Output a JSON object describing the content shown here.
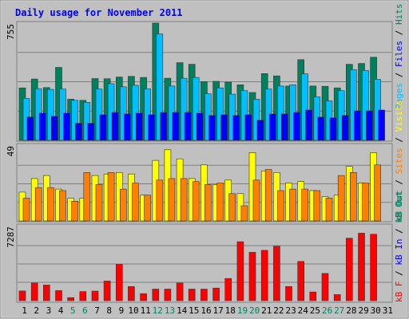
{
  "chart_data": {
    "type": "bar",
    "title": "Daily usage for November 2011",
    "days": [
      "1",
      "2",
      "3",
      "4",
      "5",
      "6",
      "7",
      "8",
      "9",
      "10",
      "11",
      "12",
      "13",
      "14",
      "15",
      "16",
      "17",
      "18",
      "19",
      "20",
      "21",
      "22",
      "23",
      "24",
      "25",
      "26",
      "27",
      "28",
      "29",
      "30",
      "31"
    ],
    "weekend_days": [
      "5",
      "6",
      "12",
      "13",
      "19",
      "20",
      "26",
      "27"
    ],
    "panels": [
      {
        "id": "hits",
        "ymax": 755,
        "ymax_label": "755",
        "ylabel": [
          "Pages",
          "Files",
          "Hits"
        ],
        "series": [
          {
            "name": "Hits",
            "color": "#00805c",
            "values": [
              338,
              395,
              340,
              470,
              265,
              258,
              398,
              397,
              408,
              412,
              405,
              755,
              400,
              500,
              490,
              378,
              380,
              375,
              358,
              308,
              430,
              415,
              350,
              520,
              350,
              348,
              338,
              490,
              495,
              535,
              0
            ]
          },
          {
            "name": "Files",
            "color": "#00bfff",
            "values": [
              270,
              333,
              328,
              330,
              258,
              245,
              330,
              365,
              345,
              355,
              332,
              685,
              350,
              400,
              405,
              300,
              338,
              298,
              320,
              265,
              330,
              350,
              358,
              428,
              280,
              255,
              320,
              455,
              450,
              393,
              0
            ]
          },
          {
            "name": "Pages",
            "color": "#0000ff",
            "values": [
              150,
              175,
              155,
              175,
              110,
              110,
              165,
              180,
              170,
              175,
              165,
              180,
              180,
              180,
              175,
              160,
              165,
              160,
              165,
              130,
              170,
              170,
              180,
              195,
              150,
              145,
              160,
              190,
              190,
              195,
              0
            ]
          }
        ]
      },
      {
        "id": "visits",
        "ymax": 49,
        "ymax_label": "49",
        "ylabel": [
          "kB Out",
          "Sites",
          "Visits"
        ],
        "series": [
          {
            "name": "Visits",
            "color": "#ffff00",
            "values": [
              19,
              28,
              30,
              21,
              15,
              15,
              30,
              31,
              32,
              31,
              17,
              40,
              47,
              41,
              28,
              37,
              24,
              27,
              18,
              45,
              33,
              32,
              25,
              26,
              20,
              16,
              17,
              36,
              25,
              45,
              0
            ]
          },
          {
            "name": "Sites",
            "color": "#ff8000",
            "values": [
              15,
              22,
              22,
              20,
              13,
              32,
              24,
              32,
              21,
              25,
              17,
              27,
              28,
              28,
              26,
              24,
              25,
              18,
              10,
              27,
              34,
              20,
              21,
              21,
              20,
              15,
              30,
              32,
              25,
              37,
              0
            ]
          }
        ]
      },
      {
        "id": "kbytes",
        "ymax": 7287,
        "ymax_label": "7287",
        "ylabel": [
          "kB F",
          "kB In",
          "kB Out"
        ],
        "series": [
          {
            "name": "kB F",
            "color": "#ff0000",
            "values": [
              970,
              1750,
              1550,
              1000,
              300,
              900,
              950,
              1950,
              3600,
              1400,
              700,
              1150,
              1150,
              1750,
              1150,
              1150,
              1250,
              2200,
              5850,
              4800,
              5000,
              5400,
              1400,
              3900,
              860,
              2700,
              600,
              6200,
              6700,
              6600,
              0
            ]
          }
        ]
      }
    ]
  }
}
